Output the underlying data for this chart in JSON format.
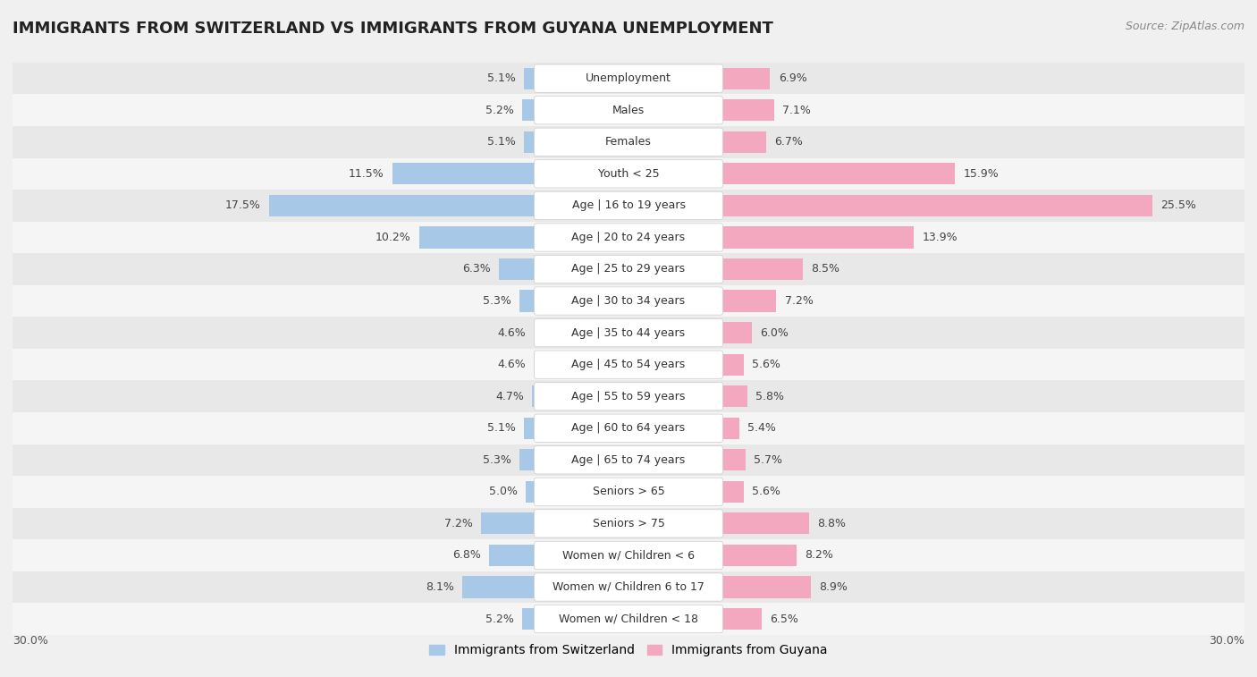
{
  "title": "IMMIGRANTS FROM SWITZERLAND VS IMMIGRANTS FROM GUYANA UNEMPLOYMENT",
  "source": "Source: ZipAtlas.com",
  "categories": [
    "Unemployment",
    "Males",
    "Females",
    "Youth < 25",
    "Age | 16 to 19 years",
    "Age | 20 to 24 years",
    "Age | 25 to 29 years",
    "Age | 30 to 34 years",
    "Age | 35 to 44 years",
    "Age | 45 to 54 years",
    "Age | 55 to 59 years",
    "Age | 60 to 64 years",
    "Age | 65 to 74 years",
    "Seniors > 65",
    "Seniors > 75",
    "Women w/ Children < 6",
    "Women w/ Children 6 to 17",
    "Women w/ Children < 18"
  ],
  "switzerland_values": [
    5.1,
    5.2,
    5.1,
    11.5,
    17.5,
    10.2,
    6.3,
    5.3,
    4.6,
    4.6,
    4.7,
    5.1,
    5.3,
    5.0,
    7.2,
    6.8,
    8.1,
    5.2
  ],
  "guyana_values": [
    6.9,
    7.1,
    6.7,
    15.9,
    25.5,
    13.9,
    8.5,
    7.2,
    6.0,
    5.6,
    5.8,
    5.4,
    5.7,
    5.6,
    8.8,
    8.2,
    8.9,
    6.5
  ],
  "switzerland_color": "#a8c8e8",
  "guyana_color": "#f4a8c0",
  "row_color_even": "#e8e8e8",
  "row_color_odd": "#f5f5f5",
  "background_color": "#f0f0f0",
  "axis_limit": 30.0,
  "bar_height": 0.68,
  "title_fontsize": 13,
  "label_fontsize": 9,
  "value_fontsize": 9,
  "legend_fontsize": 10,
  "source_fontsize": 9
}
